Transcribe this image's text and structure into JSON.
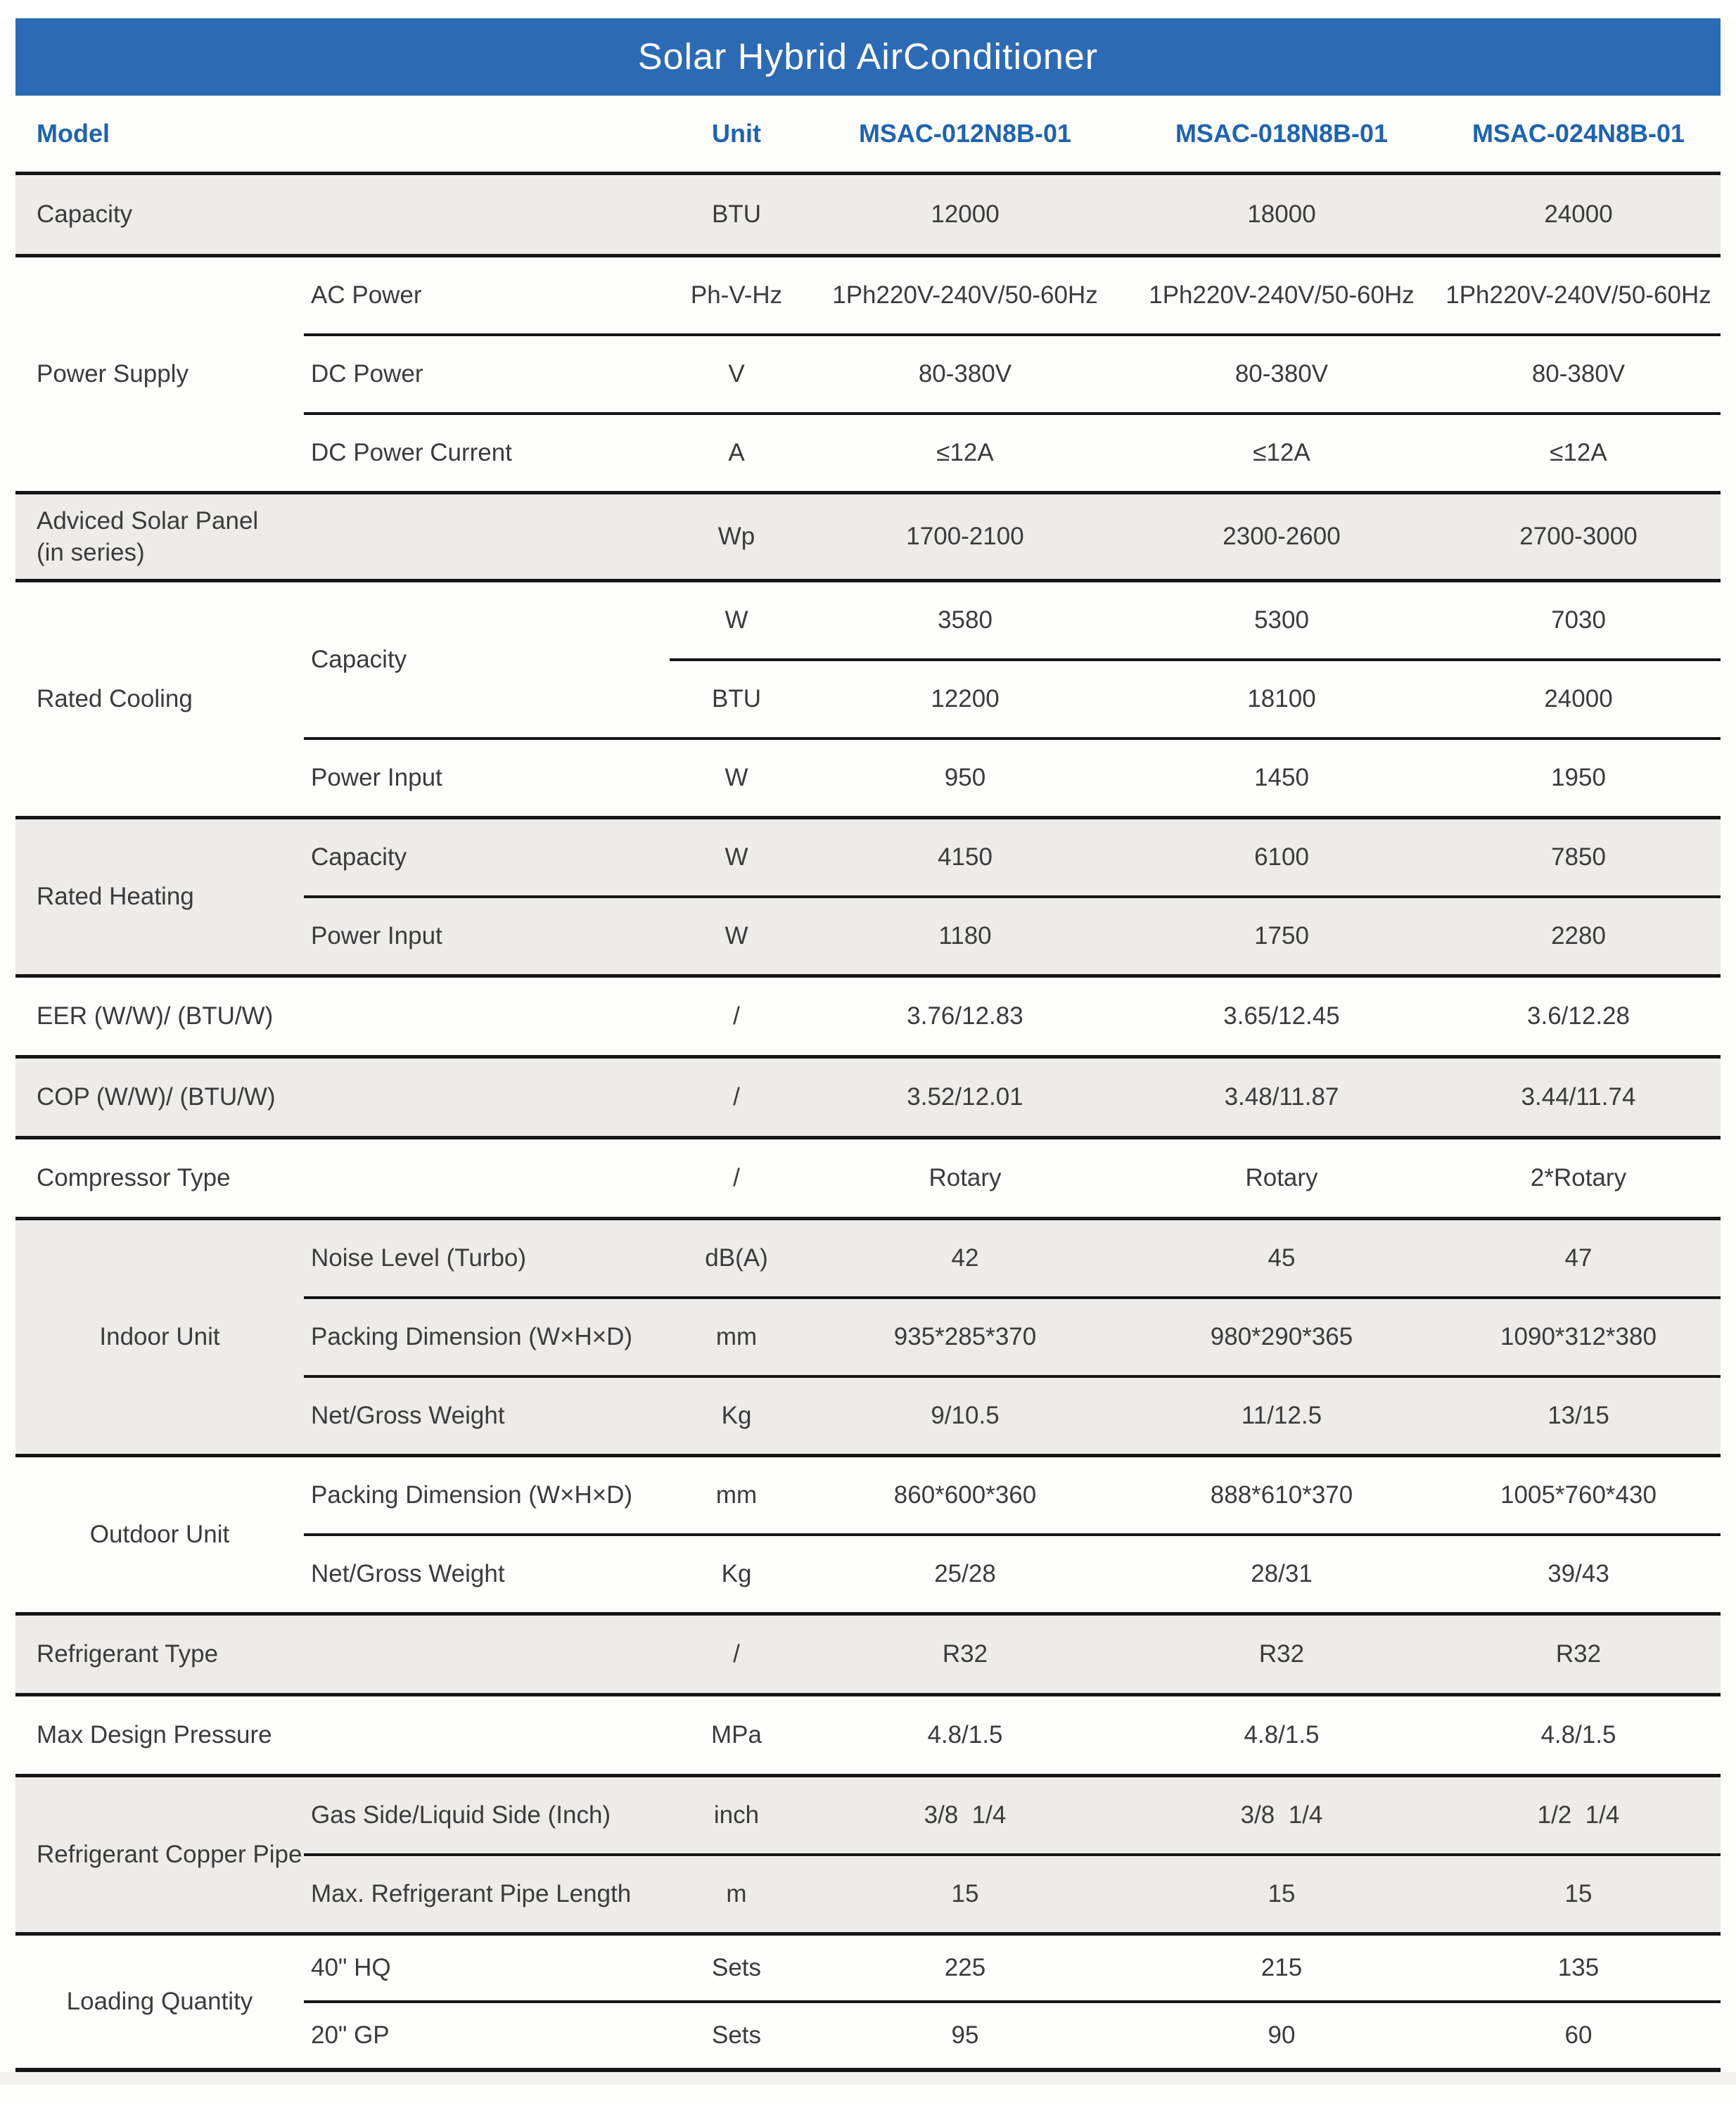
{
  "title": "Solar Hybrid AirConditioner",
  "colors": {
    "title_bar_blue": "#2c6bb3",
    "header_text_blue": "#1f63ae",
    "row_shade_gray": "#edecea",
    "separator_black": "#161616",
    "body_text": "#3b3b3b"
  },
  "header": {
    "model_label": "Model",
    "unit_label": "Unit",
    "models": [
      "MSAC-012N8B-01",
      "MSAC-018N8B-01",
      "MSAC-024N8B-01"
    ]
  },
  "sections": {
    "capacity": {
      "label": "Capacity",
      "unit": "BTU",
      "values": [
        "12000",
        "18000",
        "24000"
      ]
    },
    "power_supply": {
      "label": "Power Supply",
      "rows": [
        {
          "label": "AC Power",
          "unit": "Ph-V-Hz",
          "values": [
            "1Ph220V-240V/50-60Hz",
            "1Ph220V-240V/50-60Hz",
            "1Ph220V-240V/50-60Hz"
          ]
        },
        {
          "label": "DC Power",
          "unit": "V",
          "values": [
            "80-380V",
            "80-380V",
            "80-380V"
          ]
        },
        {
          "label": "DC Power Current",
          "unit": "A",
          "values": [
            "≤12A",
            "≤12A",
            "≤12A"
          ]
        }
      ]
    },
    "solar_panel": {
      "label_line1": "Adviced Solar Panel",
      "label_line2": "(in series)",
      "unit": "Wp",
      "values": [
        "1700-2100",
        "2300-2600",
        "2700-3000"
      ]
    },
    "rated_cooling": {
      "label": "Rated Cooling",
      "capacity_label": "Capacity",
      "capacity_rows": [
        {
          "unit": "W",
          "values": [
            "3580",
            "5300",
            "7030"
          ]
        },
        {
          "unit": "BTU",
          "values": [
            "12200",
            "18100",
            "24000"
          ]
        }
      ],
      "power_input": {
        "label": "Power Input",
        "unit": "W",
        "values": [
          "950",
          "1450",
          "1950"
        ]
      }
    },
    "rated_heating": {
      "label": "Rated Heating",
      "rows": [
        {
          "label": "Capacity",
          "unit": "W",
          "values": [
            "4150",
            "6100",
            "7850"
          ]
        },
        {
          "label": "Power Input",
          "unit": "W",
          "values": [
            "1180",
            "1750",
            "2280"
          ]
        }
      ]
    },
    "eer": {
      "label": "EER (W/W)/ (BTU/W)",
      "unit": "/",
      "values": [
        "3.76/12.83",
        "3.65/12.45",
        "3.6/12.28"
      ]
    },
    "cop": {
      "label": "COP (W/W)/ (BTU/W)",
      "unit": "/",
      "values": [
        "3.52/12.01",
        "3.48/11.87",
        "3.44/11.74"
      ]
    },
    "compressor": {
      "label": "Compressor Type",
      "unit": "/",
      "values": [
        "Rotary",
        "Rotary",
        "2*Rotary"
      ]
    },
    "indoor_unit": {
      "label": "Indoor Unit",
      "rows": [
        {
          "label": "Noise Level (Turbo)",
          "unit": "dB(A)",
          "values": [
            "42",
            "45",
            "47"
          ]
        },
        {
          "label": "Packing Dimension (W×H×D)",
          "unit": "mm",
          "values": [
            "935*285*370",
            "980*290*365",
            "1090*312*380"
          ]
        },
        {
          "label": "Net/Gross Weight",
          "unit": "Kg",
          "values": [
            "9/10.5",
            "11/12.5",
            "13/15"
          ]
        }
      ]
    },
    "outdoor_unit": {
      "label": "Outdoor Unit",
      "rows": [
        {
          "label": "Packing Dimension (W×H×D)",
          "unit": "mm",
          "values": [
            "860*600*360",
            "888*610*370",
            "1005*760*430"
          ]
        },
        {
          "label": "Net/Gross Weight",
          "unit": "Kg",
          "values": [
            "25/28",
            "28/31",
            "39/43"
          ]
        }
      ]
    },
    "refrigerant_type": {
      "label": "Refrigerant Type",
      "unit": "/",
      "values": [
        "R32",
        "R32",
        "R32"
      ]
    },
    "max_pressure": {
      "label": "Max Design Pressure",
      "unit": "MPa",
      "values": [
        "4.8/1.5",
        "4.8/1.5",
        "4.8/1.5"
      ]
    },
    "copper_pipe": {
      "label": "Refrigerant Copper Pipe",
      "rows": [
        {
          "label": "Gas Side/Liquid Side (Inch)",
          "unit": "inch",
          "values": [
            "3/8  1/4",
            "3/8  1/4",
            "1/2  1/4"
          ]
        },
        {
          "label": "Max. Refrigerant Pipe Length",
          "unit": "m",
          "values": [
            "15",
            "15",
            "15"
          ]
        }
      ]
    },
    "loading_quantity": {
      "label": "Loading Quantity",
      "rows": [
        {
          "label": "40\" HQ",
          "unit": "Sets",
          "values": [
            "225",
            "215",
            "135"
          ]
        },
        {
          "label": "20\" GP",
          "unit": "Sets",
          "values": [
            "95",
            "90",
            "60"
          ]
        }
      ]
    }
  }
}
